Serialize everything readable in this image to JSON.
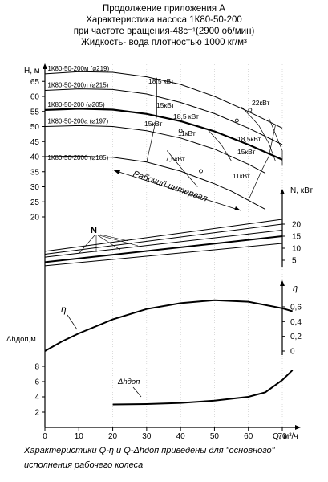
{
  "header": {
    "line1": "Продолжение приложения А",
    "line2": "Характеристика насоса 1К80-50-200",
    "line3": "при частоте вращения-48с⁻¹(2900 об/мин)",
    "line4": "Жидкость- вода плотностью 1000 кг/м³"
  },
  "footer": {
    "line1": "Характеристики Q-η и Q-Δhдоп приведены для \"основного\"",
    "line2": "исполнения рабочего колеса"
  },
  "chart_data": [
    {
      "type": "line",
      "panel": "H-Q",
      "ylabel": "H, м",
      "y_ticks": [
        20,
        25,
        30,
        35,
        40,
        45,
        50,
        55,
        60,
        65
      ],
      "series": [
        {
          "name": "1К80-50-200м (⌀219)",
          "x": [
            0,
            10,
            20,
            30,
            40,
            50,
            60,
            70
          ],
          "y": [
            67.5,
            68.2,
            68.0,
            66.5,
            64.0,
            60.0,
            55.0,
            49.5
          ]
        },
        {
          "name": "1К80-50-200л (⌀215)",
          "x": [
            0,
            10,
            20,
            30,
            40,
            50,
            60,
            70
          ],
          "y": [
            62.0,
            62.5,
            62.3,
            60.8,
            58.0,
            54.3,
            49.5,
            44.0
          ]
        },
        {
          "name": "1К80-50-200 (⌀205)",
          "x": [
            0,
            10,
            20,
            30,
            40,
            50,
            60,
            70
          ],
          "y": [
            55.5,
            55.9,
            55.6,
            54.2,
            51.8,
            48.4,
            44.0,
            39.0
          ]
        },
        {
          "name": "1К80-50-200а (⌀197)",
          "x": [
            0,
            10,
            20,
            30,
            40,
            50,
            60,
            65
          ],
          "y": [
            50.0,
            50.3,
            50.0,
            48.6,
            46.2,
            42.5,
            37.5,
            34.5
          ]
        },
        {
          "name": "1К80-50-200б (⌀185)",
          "x": [
            0,
            10,
            20,
            30,
            40,
            50,
            55,
            65
          ],
          "y": [
            40.0,
            40.2,
            39.8,
            38.2,
            35.2,
            31.0,
            28.5,
            22.5
          ]
        }
      ],
      "power_labels": [
        "18,5 кВт",
        "22кВт",
        "15кВт",
        "18,5 кВт",
        "15кВт",
        "11кВт",
        "18,5кВт",
        "15кВт",
        "7,5кВт",
        "11кВт"
      ],
      "annotation": "Рабочий интервал"
    },
    {
      "type": "line",
      "panel": "N-Q",
      "ylabel": "N, кВт",
      "y_ticks": [
        5,
        10,
        15,
        20
      ],
      "label": "N",
      "series": [
        {
          "name": "",
          "x": [
            0,
            70
          ],
          "y": [
            8.7,
            22.0
          ]
        },
        {
          "name": "",
          "x": [
            0,
            70
          ],
          "y": [
            7.5,
            20.0
          ]
        },
        {
          "name": "",
          "x": [
            0,
            70
          ],
          "y": [
            6.3,
            17.5
          ]
        },
        {
          "name": "",
          "x": [
            0,
            70
          ],
          "y": [
            4.2,
            15.0
          ]
        },
        {
          "name": "",
          "x": [
            0,
            70
          ],
          "y": [
            2.7,
            12.0
          ]
        }
      ]
    },
    {
      "type": "line",
      "panel": "η-Q",
      "ylabel": "η",
      "y_ticks": [
        "0",
        "0,2",
        "0,4",
        "0,6"
      ],
      "series": [
        {
          "name": "η",
          "x": [
            0,
            5,
            10,
            20,
            30,
            40,
            50,
            60,
            70,
            73
          ],
          "y": [
            0.0,
            0.13,
            0.24,
            0.43,
            0.57,
            0.65,
            0.69,
            0.67,
            0.58,
            0.54
          ]
        }
      ]
    },
    {
      "type": "line",
      "panel": "Δh-Q",
      "ylabel": "Δhдоп,м",
      "y_ticks": [
        2,
        4,
        6,
        8
      ],
      "xlabel": "Q, м³/ч",
      "x_ticks": [
        0,
        10,
        20,
        30,
        40,
        50,
        60,
        70
      ],
      "series": [
        {
          "name": "Δhдоп",
          "x": [
            20,
            30,
            40,
            50,
            60,
            65,
            70,
            73
          ],
          "y": [
            3.0,
            3.05,
            3.2,
            3.5,
            4.0,
            4.6,
            6.2,
            7.5
          ]
        }
      ]
    }
  ]
}
